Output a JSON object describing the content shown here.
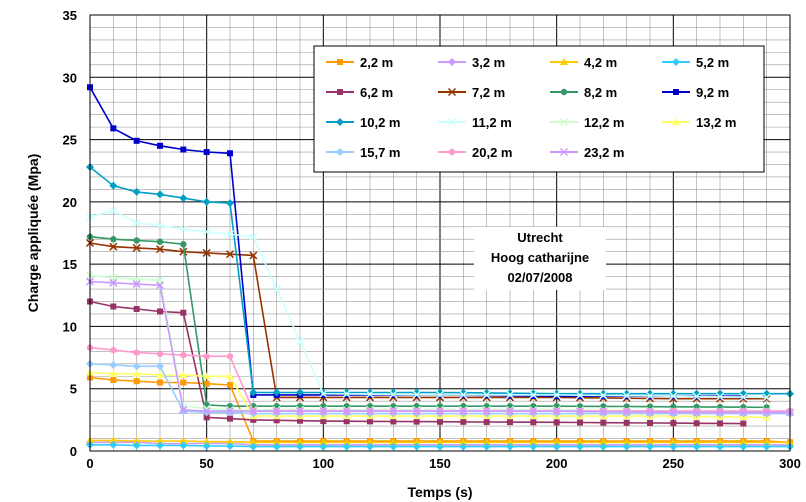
{
  "chart_data": {
    "type": "line",
    "title": "",
    "xlabel": "Temps (s)",
    "ylabel": "Charge appliquée (Mpa)",
    "xlim": [
      0,
      300
    ],
    "ylim": [
      0,
      35
    ],
    "xticks": [
      0,
      50,
      100,
      150,
      200,
      250,
      300
    ],
    "yticks": [
      0,
      5,
      10,
      15,
      20,
      25,
      30,
      35
    ],
    "grid": true,
    "legend_position": "top-right",
    "annotation": [
      "Utrecht",
      "Hoog catharijne",
      "02/07/2008"
    ],
    "series": [
      {
        "name": "2,2 m",
        "color": "#FF9900",
        "marker": "square",
        "x": [
          0,
          10,
          20,
          30,
          40,
          50,
          60,
          70,
          280,
          290,
          300
        ],
        "y": [
          5.9,
          5.7,
          5.6,
          5.5,
          5.5,
          5.4,
          5.3,
          0.8,
          0.8,
          0.8,
          0.7
        ]
      },
      {
        "name": "3,2 m",
        "color": "#CC99FF",
        "marker": "diamond",
        "x": [
          0,
          10,
          20,
          30,
          40,
          50,
          60,
          70,
          300
        ],
        "y": [
          0.7,
          0.7,
          0.7,
          0.6,
          0.6,
          0.6,
          0.6,
          0.5,
          0.5
        ]
      },
      {
        "name": "4,2 m",
        "color": "#FFCC00",
        "marker": "triangle",
        "x": [
          0,
          10,
          20,
          30,
          40,
          50,
          60,
          70,
          300
        ],
        "y": [
          0.85,
          0.85,
          0.8,
          0.8,
          0.8,
          0.75,
          0.75,
          0.7,
          0.7
        ]
      },
      {
        "name": "5,2 m",
        "color": "#33CCFF",
        "marker": "diamond",
        "x": [
          0,
          10,
          20,
          30,
          40,
          50,
          60,
          70,
          300
        ],
        "y": [
          0.5,
          0.5,
          0.45,
          0.45,
          0.45,
          0.4,
          0.4,
          0.35,
          0.35
        ]
      },
      {
        "name": "6,2 m",
        "color": "#993366",
        "marker": "square",
        "x": [
          0,
          10,
          20,
          30,
          40,
          50,
          60,
          70,
          100,
          150,
          200,
          240,
          280
        ],
        "y": [
          12.0,
          11.6,
          11.4,
          11.2,
          11.1,
          2.7,
          2.6,
          2.5,
          2.4,
          2.35,
          2.3,
          2.25,
          2.2
        ]
      },
      {
        "name": "7,2 m",
        "color": "#993300",
        "marker": "x",
        "x": [
          0,
          10,
          20,
          30,
          40,
          50,
          60,
          70,
          80,
          100,
          150,
          200,
          250,
          290
        ],
        "y": [
          16.7,
          16.4,
          16.3,
          16.2,
          16.0,
          15.9,
          15.8,
          15.7,
          4.3,
          4.3,
          4.3,
          4.3,
          4.2,
          4.2
        ]
      },
      {
        "name": "8,2 m",
        "color": "#339966",
        "marker": "circle",
        "x": [
          0,
          10,
          20,
          30,
          40,
          50,
          60,
          70,
          100,
          150,
          200,
          250,
          290
        ],
        "y": [
          17.2,
          17.0,
          16.9,
          16.8,
          16.6,
          3.7,
          3.6,
          3.6,
          3.6,
          3.6,
          3.6,
          3.55,
          3.5
        ]
      },
      {
        "name": "9,2 m",
        "color": "#0000CC",
        "marker": "square",
        "x": [
          0,
          10,
          20,
          30,
          40,
          50,
          60,
          70,
          100,
          150,
          200,
          250,
          280
        ],
        "y": [
          29.2,
          25.9,
          24.9,
          24.5,
          24.2,
          24.0,
          23.9,
          4.5,
          4.5,
          4.5,
          4.4,
          4.4,
          4.4
        ]
      },
      {
        "name": "10,2 m",
        "color": "#00A0C6",
        "marker": "diamond",
        "x": [
          0,
          10,
          20,
          30,
          40,
          50,
          60,
          70,
          100,
          150,
          200,
          250,
          300
        ],
        "y": [
          22.8,
          21.3,
          20.8,
          20.6,
          20.3,
          20.0,
          19.9,
          4.7,
          4.7,
          4.7,
          4.6,
          4.6,
          4.6
        ]
      },
      {
        "name": "11,2 m",
        "color": "#CCFFFF",
        "marker": "x",
        "x": [
          0,
          10,
          20,
          30,
          40,
          50,
          60,
          70,
          100,
          150,
          200,
          250,
          290
        ],
        "y": [
          18.8,
          19.3,
          18.3,
          18.1,
          17.8,
          17.6,
          17.4,
          17.2,
          4.6,
          4.5,
          4.5,
          4.4,
          4.3
        ]
      },
      {
        "name": "12,2 m",
        "color": "#CCFFCC",
        "marker": "x",
        "x": [
          0,
          10,
          20,
          30,
          40,
          50,
          60,
          70,
          100,
          150,
          200,
          250,
          290
        ],
        "y": [
          14.1,
          13.9,
          13.8,
          13.7,
          3.6,
          3.4,
          3.3,
          3.3,
          3.3,
          3.3,
          3.3,
          3.2,
          3.2
        ]
      },
      {
        "name": "13,2 m",
        "color": "#FFFF66",
        "marker": "triangle",
        "x": [
          0,
          10,
          20,
          30,
          40,
          50,
          60,
          70,
          100,
          150,
          200,
          250,
          290
        ],
        "y": [
          6.3,
          6.2,
          6.2,
          6.1,
          6.1,
          6.0,
          6.0,
          2.8,
          2.8,
          2.8,
          2.8,
          2.8,
          2.7
        ]
      },
      {
        "name": "15,7 m",
        "color": "#99CCFF",
        "marker": "diamond",
        "x": [
          0,
          10,
          20,
          30,
          40,
          50,
          60,
          70,
          100,
          150,
          200,
          250,
          300
        ],
        "y": [
          7.0,
          6.9,
          6.8,
          6.8,
          3.2,
          3.1,
          3.1,
          3.0,
          3.0,
          3.0,
          3.0,
          3.0,
          3.0
        ]
      },
      {
        "name": "20,2 m",
        "color": "#FF99CC",
        "marker": "circle",
        "x": [
          0,
          10,
          20,
          30,
          40,
          50,
          60,
          70,
          100,
          150,
          200,
          250,
          300
        ],
        "y": [
          8.3,
          8.1,
          7.9,
          7.8,
          7.7,
          7.6,
          7.6,
          3.2,
          3.2,
          3.2,
          3.2,
          3.2,
          3.2
        ]
      },
      {
        "name": "23,2 m",
        "color": "#CC99FF",
        "marker": "x",
        "x": [
          0,
          10,
          20,
          30,
          40,
          50,
          60,
          70,
          100,
          150,
          200,
          250,
          300
        ],
        "y": [
          13.6,
          13.5,
          13.4,
          13.3,
          3.3,
          3.2,
          3.2,
          3.2,
          3.2,
          3.2,
          3.2,
          3.1,
          3.1
        ]
      }
    ]
  }
}
